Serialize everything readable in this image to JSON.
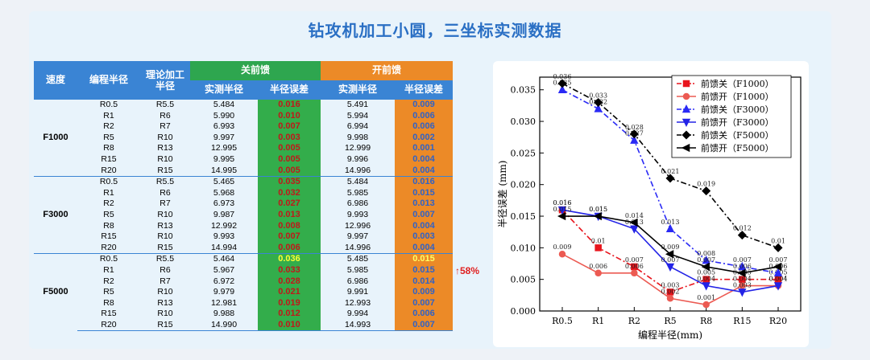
{
  "title": "钻攻机加工小圆，三坐标实测数据",
  "table": {
    "headers": {
      "speed": "速度",
      "prog": "编程半径",
      "theory": "理论加工半径",
      "ff_off": "关前馈",
      "ff_on": "开前馈",
      "meas": "实测半径",
      "err": "半径误差"
    },
    "groups": [
      {
        "speed": "F1000",
        "rows": [
          [
            "R0.5",
            "R5.5",
            "5.484",
            "0.016",
            "5.491",
            "0.009"
          ],
          [
            "R1",
            "R6",
            "5.990",
            "0.010",
            "5.994",
            "0.006"
          ],
          [
            "R2",
            "R7",
            "6.993",
            "0.007",
            "6.994",
            "0.006"
          ],
          [
            "R5",
            "R10",
            "9.997",
            "0.003",
            "9.998",
            "0.002"
          ],
          [
            "R8",
            "R13",
            "12.995",
            "0.005",
            "12.999",
            "0.001"
          ],
          [
            "R15",
            "R10",
            "9.995",
            "0.005",
            "9.996",
            "0.004"
          ],
          [
            "R20",
            "R15",
            "14.995",
            "0.005",
            "14.996",
            "0.004"
          ]
        ]
      },
      {
        "speed": "F3000",
        "rows": [
          [
            "R0.5",
            "R5.5",
            "5.465",
            "0.035",
            "5.484",
            "0.016"
          ],
          [
            "R1",
            "R6",
            "5.968",
            "0.032",
            "5.985",
            "0.015"
          ],
          [
            "R2",
            "R7",
            "6.973",
            "0.027",
            "6.986",
            "0.013"
          ],
          [
            "R5",
            "R10",
            "9.987",
            "0.013",
            "9.993",
            "0.007"
          ],
          [
            "R8",
            "R13",
            "12.992",
            "0.008",
            "12.996",
            "0.004"
          ],
          [
            "R15",
            "R10",
            "9.993",
            "0.007",
            "9.997",
            "0.003"
          ],
          [
            "R20",
            "R15",
            "14.994",
            "0.006",
            "14.996",
            "0.004"
          ]
        ]
      },
      {
        "speed": "F5000",
        "rows": [
          [
            "R0.5",
            "R5.5",
            "5.464",
            "0.036",
            "5.485",
            "0.015"
          ],
          [
            "R1",
            "R6",
            "5.967",
            "0.033",
            "5.985",
            "0.015"
          ],
          [
            "R2",
            "R7",
            "6.972",
            "0.028",
            "6.986",
            "0.014"
          ],
          [
            "R5",
            "R10",
            "9.979",
            "0.021",
            "9.991",
            "0.009"
          ],
          [
            "R8",
            "R13",
            "12.981",
            "0.019",
            "12.993",
            "0.007"
          ],
          [
            "R15",
            "R10",
            "9.988",
            "0.012",
            "9.994",
            "0.006"
          ],
          [
            "R20",
            "R15",
            "14.990",
            "0.010",
            "14.993",
            "0.007"
          ]
        ]
      }
    ],
    "note": "↑58%"
  },
  "chart_data": {
    "type": "line",
    "categories": [
      "R0.5",
      "R1",
      "R2",
      "R5",
      "R8",
      "R15",
      "R20"
    ],
    "xlabel": "编程半径(mm)",
    "ylabel": "半径误差 (mm)",
    "ylim": [
      0,
      0.037
    ],
    "yticks": [
      "0.000",
      "0.005",
      "0.010",
      "0.015",
      "0.020",
      "0.025",
      "0.030",
      "0.035"
    ],
    "legend_position": "top-right",
    "series": [
      {
        "name": "前馈关（F1000）",
        "color": "#e8141c",
        "marker": "square",
        "dash": "dashdot",
        "values": [
          0.016,
          0.01,
          0.007,
          0.003,
          0.005,
          0.005,
          0.005
        ]
      },
      {
        "name": "前馈开（F1000）",
        "color": "#ec5a52",
        "marker": "circle",
        "dash": "solid",
        "values": [
          0.009,
          0.006,
          0.006,
          0.002,
          0.001,
          0.004,
          0.004
        ]
      },
      {
        "name": "前馈关（F3000）",
        "color": "#2a2af5",
        "marker": "triangle-up",
        "dash": "dashdot",
        "values": [
          0.035,
          0.032,
          0.027,
          0.013,
          0.008,
          0.007,
          0.006
        ]
      },
      {
        "name": "前馈开（F3000）",
        "color": "#2323e6",
        "marker": "triangle-down",
        "dash": "solid",
        "values": [
          0.016,
          0.015,
          0.013,
          0.007,
          0.004,
          0.003,
          0.004
        ]
      },
      {
        "name": "前馈关（F5000）",
        "color": "#000000",
        "marker": "diamond",
        "dash": "dashdot",
        "values": [
          0.036,
          0.033,
          0.028,
          0.021,
          0.019,
          0.012,
          0.01
        ]
      },
      {
        "name": "前馈开（F5000）",
        "color": "#000000",
        "marker": "triangle-left",
        "dash": "solid",
        "values": [
          0.015,
          0.015,
          0.014,
          0.009,
          0.007,
          0.006,
          0.007
        ]
      }
    ]
  }
}
